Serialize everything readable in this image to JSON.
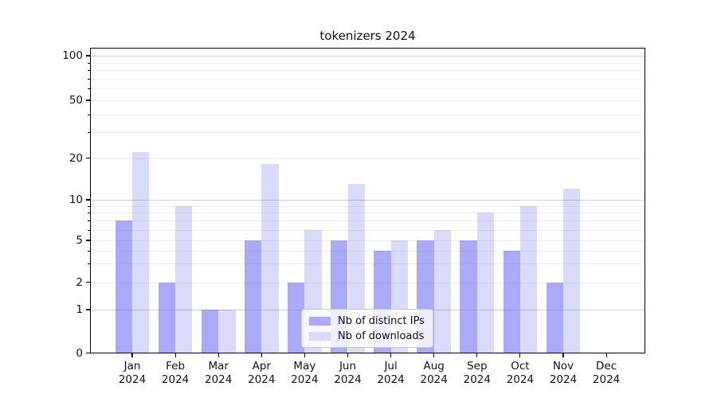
{
  "chart_data": {
    "type": "bar",
    "title": "tokenizers 2024",
    "categories": [
      "Jan 2024",
      "Feb 2024",
      "Mar 2024",
      "Apr 2024",
      "May 2024",
      "Jun 2024",
      "Jul 2024",
      "Aug 2024",
      "Sep 2024",
      "Oct 2024",
      "Nov 2024",
      "Dec 2024"
    ],
    "series": [
      {
        "name": "Nb of distinct IPs",
        "color": "#aaaaf8",
        "values": [
          7,
          2,
          1,
          5,
          2,
          5,
          4,
          5,
          5,
          4,
          2,
          0
        ]
      },
      {
        "name": "Nb of downloads",
        "color": "#dadafa",
        "values": [
          22,
          9,
          1,
          18,
          6,
          13,
          5,
          6,
          8,
          9,
          12,
          0
        ]
      }
    ],
    "xlabel": "",
    "ylabel": "",
    "y_axis": {
      "scale": "log above 1, linear between 0 and 1",
      "tick_values": [
        0,
        1,
        2,
        5,
        10,
        20,
        50,
        100
      ],
      "tick_labels": [
        "0",
        "1",
        "2",
        "5",
        "10",
        "20",
        "50",
        "100"
      ],
      "major_gridlines": [
        1,
        10,
        100
      ],
      "minor_gridlines": [
        2,
        3,
        4,
        5,
        6,
        7,
        8,
        9,
        20,
        30,
        40,
        50,
        60,
        70,
        80,
        90
      ],
      "minor_tick_values": [
        3,
        4,
        6,
        7,
        8,
        9,
        30,
        40,
        60,
        70,
        80,
        90
      ],
      "ylim": [
        0,
        115
      ]
    },
    "grid": true,
    "legend": {
      "position": "lower center",
      "entries": [
        "Nb of distinct IPs",
        "Nb of downloads"
      ]
    }
  },
  "colors": {
    "bar_ips": "#aaaaf8",
    "bar_downloads": "#dadafa",
    "spine": "#000000",
    "grid_major": "#cfcfcf",
    "grid_minor": "#ededed",
    "legend_border": "#cccccc",
    "text": "#111111"
  }
}
